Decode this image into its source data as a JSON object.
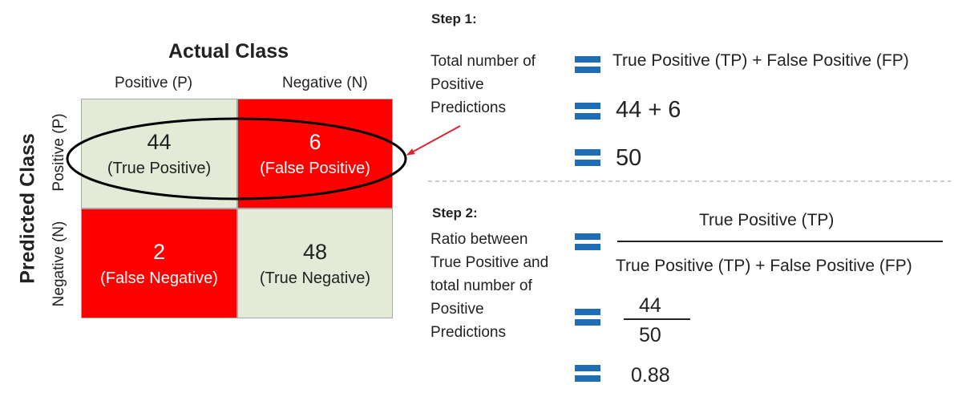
{
  "matrix": {
    "actual_title": "Actual Class",
    "predicted_title": "Predicted Class",
    "col_labels": [
      "Positive (P)",
      "Negative (N)"
    ],
    "row_labels": [
      "Positive (P)",
      "Negative (N)"
    ],
    "cells": {
      "tp": {
        "value": "44",
        "label": "(True Positive)"
      },
      "fp": {
        "value": "6",
        "label": "(False Positive)"
      },
      "fn": {
        "value": "2",
        "label": "(False Negative)"
      },
      "tn": {
        "value": "48",
        "label": "(True Negative)"
      }
    },
    "colors": {
      "correct": "#e3ead7",
      "incorrect": "#ff0000",
      "highlight": "#000000",
      "arrow": "#d9262e"
    }
  },
  "step1": {
    "title": "Step 1:",
    "description": "Total number of\nPositive\nPredictions",
    "formula": "True Positive (TP) + False Positive (FP)",
    "substitution": "44 + 6",
    "result": "50"
  },
  "step2": {
    "title": "Step 2:",
    "description": "Ratio between\nTrue Positive and\ntotal number of\nPositive\nPredictions",
    "numerator": "True Positive (TP)",
    "denominator": "True Positive (TP) + False Positive (FP)",
    "fraction_numerator": "44",
    "fraction_denominator": "50",
    "result": "0.88"
  },
  "equals_color": "#1f6db4"
}
